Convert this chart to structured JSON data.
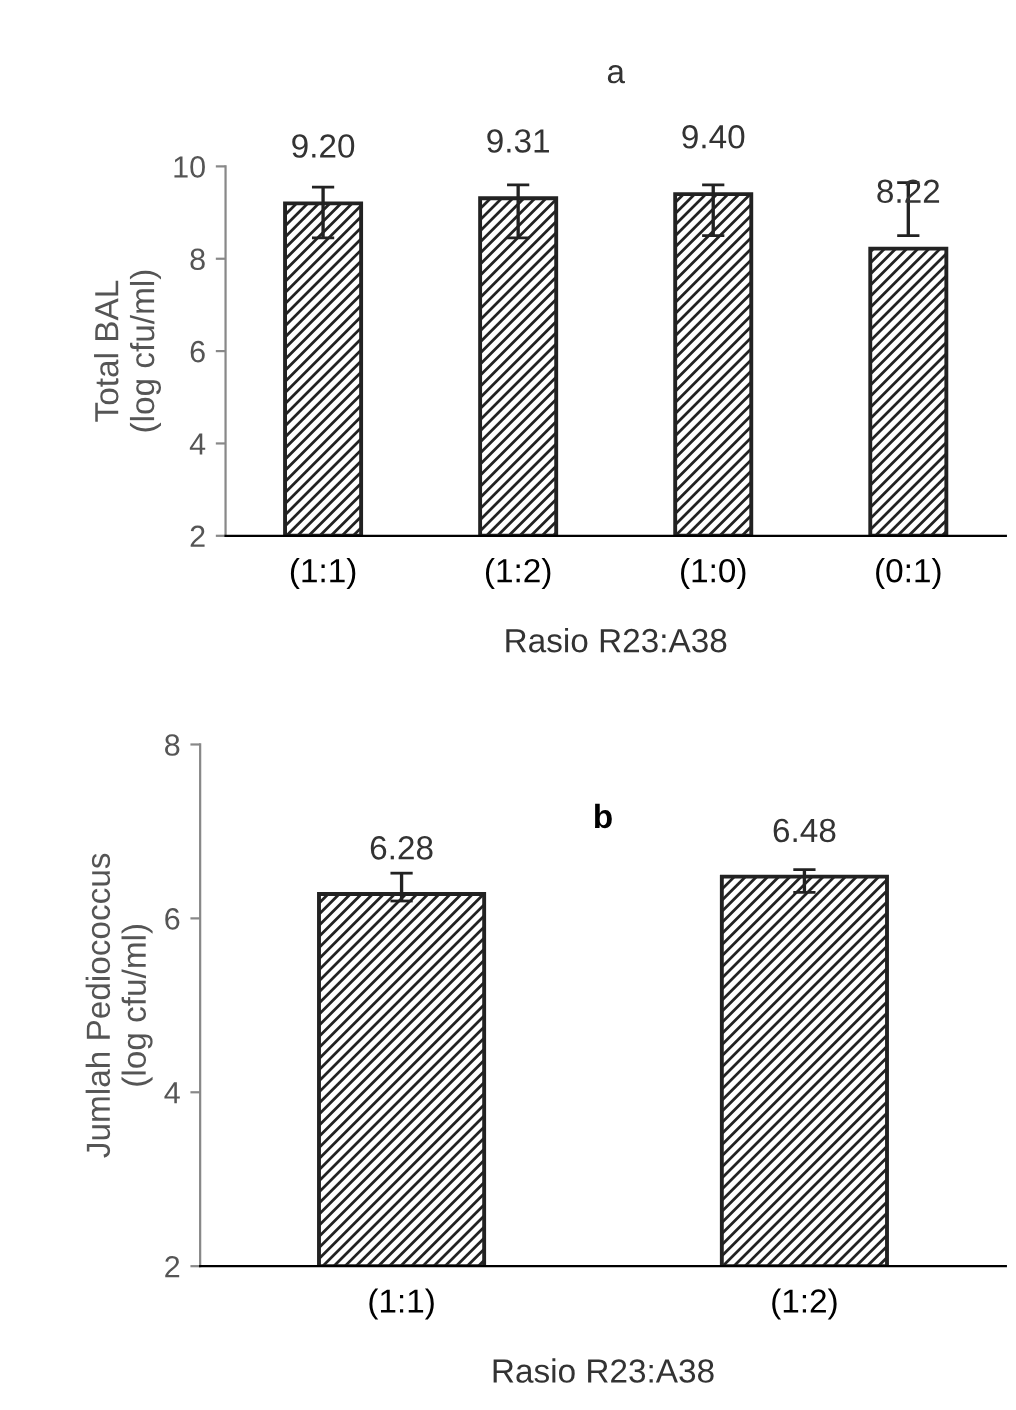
{
  "chart_data": [
    {
      "type": "bar",
      "title": "a",
      "xlabel": "Rasio R23:A38",
      "ylabel": "Total BAL\n(log cfu/ml)",
      "categories": [
        "(1:1)",
        "(1:2)",
        "(1:0)",
        "(0:1)"
      ],
      "values": [
        9.2,
        9.31,
        9.4,
        8.22
      ],
      "value_labels": [
        "9.20",
        "9.31",
        "9.40",
        "8.22"
      ],
      "errors": [
        [
          8.45,
          9.55
        ],
        [
          8.45,
          9.6
        ],
        [
          8.5,
          9.6
        ],
        [
          8.5,
          9.65
        ]
      ],
      "color": "#222222",
      "ylim": [
        2,
        10
      ],
      "yticks": [
        2,
        4,
        6,
        8,
        10
      ],
      "grid": false,
      "legend": false
    },
    {
      "type": "bar",
      "xlabel": "Rasio R23:A38",
      "ylabel": "Jumlah Pediococcus\n(log cfu/ml)",
      "annotations": [
        "b"
      ],
      "categories": [
        "(1:1)",
        "(1:2)"
      ],
      "values": [
        6.28,
        6.48
      ],
      "value_labels": [
        "6.28",
        "6.48"
      ],
      "errors": [
        [
          6.2,
          6.52
        ],
        [
          6.3,
          6.56
        ]
      ],
      "color": "#222222",
      "ylim": [
        2,
        8
      ],
      "yticks": [
        2,
        4,
        6,
        8
      ],
      "grid": false,
      "legend": false
    }
  ]
}
